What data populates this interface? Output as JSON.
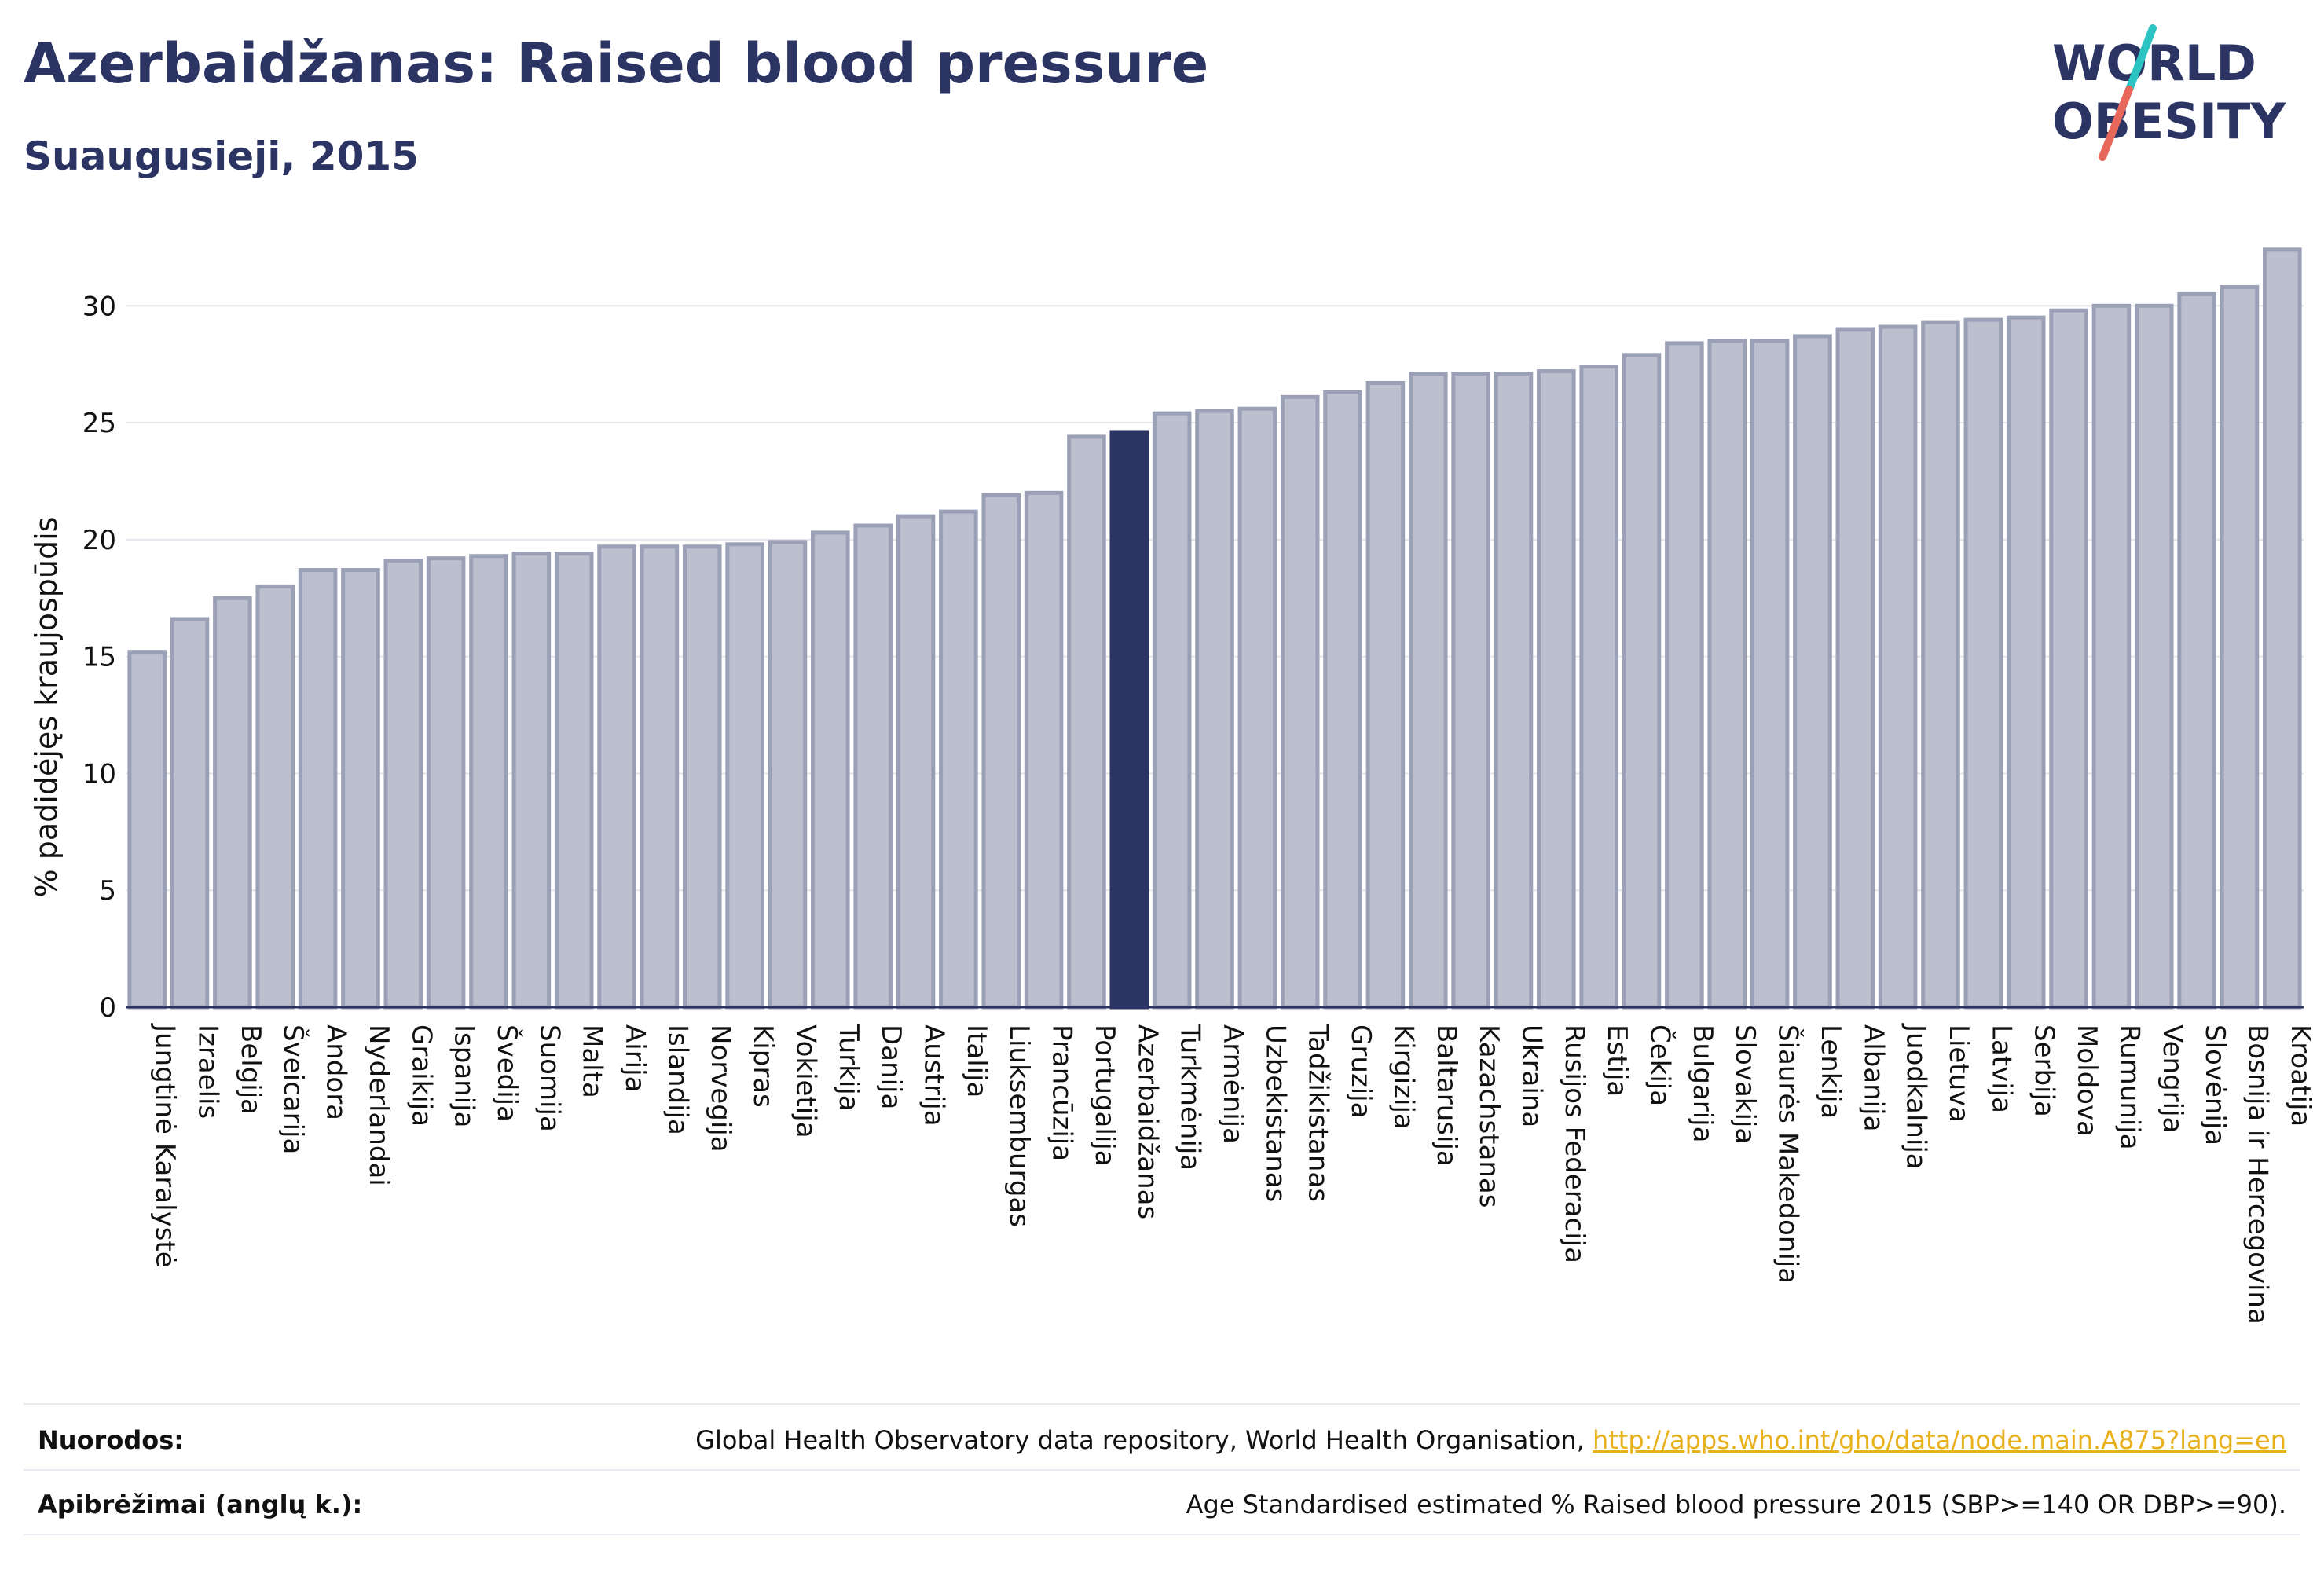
{
  "header": {
    "title": "Azerbaidžanas: Raised blood pressure",
    "subtitle": "Suaugusieji, 2015"
  },
  "logo": {
    "line1": "WORLD",
    "line2": "OBESITY",
    "slash_colors": [
      "#2cc3c3",
      "#e8675b"
    ]
  },
  "colors": {
    "bar": "#bcc0ce",
    "bar_stroke": "#9aa0b5",
    "highlight": "#2b3462",
    "text": "#2b3462",
    "link": "#e8b11c"
  },
  "chart_data": {
    "type": "bar",
    "title": "",
    "xlabel": "",
    "ylabel": "% padidėjęs kraujospūdis",
    "ylim": [
      0,
      33
    ],
    "yticks": [
      0,
      5,
      10,
      15,
      20,
      25,
      30
    ],
    "grid": true,
    "highlight": "Azerbaidžanas",
    "categories": [
      "Jungtinė Karalystė",
      "Izraelis",
      "Belgija",
      "Šveicarija",
      "Andora",
      "Nyderlandai",
      "Graikija",
      "Ispanija",
      "Švedija",
      "Suomija",
      "Malta",
      "Airija",
      "Islandija",
      "Norvegija",
      "Kipras",
      "Vokietija",
      "Turkija",
      "Danija",
      "Austrija",
      "Italija",
      "Liuksemburgas",
      "Prancūzija",
      "Portugalija",
      "Azerbaidžanas",
      "Turkmėnija",
      "Armėnija",
      "Uzbekistanas",
      "Tadžikistanas",
      "Gruzija",
      "Kirgizija",
      "Baltarusija",
      "Kazachstanas",
      "Ukraina",
      "Rusijos Federacija",
      "Estija",
      "Čekija",
      "Bulgarija",
      "Slovakija",
      "Šiaurės Makedonija",
      "Lenkija",
      "Albanija",
      "Juodkalnija",
      "Lietuva",
      "Latvija",
      "Serbija",
      "Moldova",
      "Rumunija",
      "Vengrija",
      "Slovėnija",
      "Bosnija ir Hercegovina",
      "Kroatija"
    ],
    "values": [
      15.2,
      16.6,
      17.5,
      18.0,
      18.7,
      18.7,
      19.1,
      19.2,
      19.3,
      19.4,
      19.4,
      19.7,
      19.7,
      19.7,
      19.8,
      19.9,
      20.3,
      20.6,
      21.0,
      21.2,
      21.9,
      22.0,
      24.4,
      24.6,
      25.4,
      25.5,
      25.6,
      26.1,
      26.3,
      26.7,
      27.1,
      27.1,
      27.1,
      27.2,
      27.4,
      27.9,
      28.4,
      28.5,
      28.5,
      28.7,
      29.0,
      29.1,
      29.3,
      29.4,
      29.5,
      29.8,
      30.0,
      30.0,
      30.5,
      30.8,
      32.4
    ]
  },
  "footer": {
    "sources_label": "Nuorodos:",
    "sources_text": "Global Health Observatory data repository, World Health Organisation, ",
    "sources_link": "http://apps.who.int/gho/data/node.main.A875?lang=en",
    "definitions_label": "Apibrėžimai (anglų k.):",
    "definitions_text": "Age Standardised estimated % Raised blood pressure 2015 (SBP>=140 OR DBP>=90)."
  }
}
